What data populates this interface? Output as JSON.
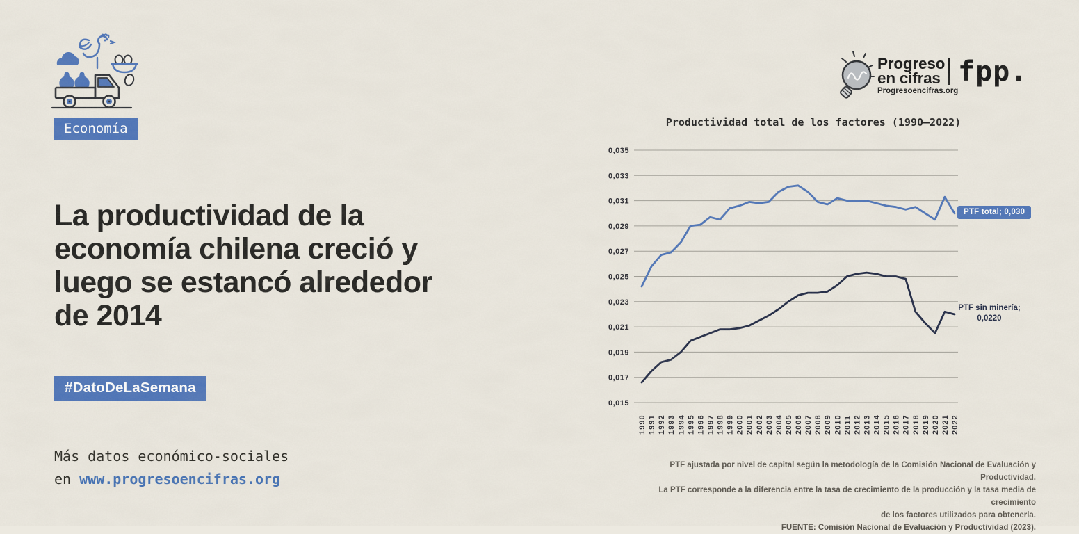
{
  "colors": {
    "paper": "#ece9e0",
    "accent_blue": "#4a72b8",
    "dark_navy": "#1b2441",
    "ink": "#1d1d1b",
    "link_blue": "#3d6db4",
    "gridline": "#a09e96",
    "footnote_gray": "#57534b"
  },
  "icons": {
    "header": "food-truck-with-farm-goods-icon",
    "brand": "lightbulb-icon"
  },
  "badges": {
    "category": "Economía",
    "hashtag": "#DatoDeLaSemana"
  },
  "hero": {
    "title": "La productividad de la\neconomía chilena creció y\nluego se estancó alrededor\nde 2014"
  },
  "footer_left": {
    "line1": "Más datos económico-sociales",
    "line2_prefix": "en ",
    "link": "www.progresoencifras.org"
  },
  "brand": {
    "line1": "Progreso",
    "line2": "en cifras",
    "site": "Progresoencifras.org",
    "partner": "fpp."
  },
  "chart_data": {
    "type": "line",
    "title": "Productividad total de los factores (1990–2022)",
    "xlabel": "",
    "ylabel": "",
    "grid": true,
    "legend_position": "end-of-line labels",
    "ylim": [
      0.015,
      0.035
    ],
    "ytick_step": 0.002,
    "yticks": [
      "0,015",
      "0,017",
      "0,019",
      "0,021",
      "0,023",
      "0,025",
      "0,027",
      "0,029",
      "0,031",
      "0,033",
      "0,035"
    ],
    "x": [
      1990,
      1991,
      1992,
      1993,
      1994,
      1995,
      1996,
      1997,
      1998,
      1999,
      2000,
      2001,
      2002,
      2003,
      2004,
      2005,
      2006,
      2007,
      2008,
      2009,
      2010,
      2011,
      2012,
      2013,
      2014,
      2015,
      2016,
      2017,
      2018,
      2019,
      2020,
      2021,
      2022
    ],
    "series": [
      {
        "name": "PTF total",
        "color": "#4a72b8",
        "values": [
          0.0242,
          0.0258,
          0.0267,
          0.0269,
          0.0277,
          0.029,
          0.0291,
          0.0297,
          0.0295,
          0.0304,
          0.0306,
          0.0309,
          0.0308,
          0.0309,
          0.0317,
          0.0321,
          0.0322,
          0.0317,
          0.0309,
          0.0307,
          0.0312,
          0.031,
          0.031,
          0.031,
          0.0308,
          0.0306,
          0.0305,
          0.0303,
          0.0305,
          0.03,
          0.0295,
          0.0313,
          0.03
        ]
      },
      {
        "name": "PTF sin minería",
        "color": "#1b2441",
        "values": [
          0.0166,
          0.0175,
          0.0182,
          0.0184,
          0.019,
          0.0199,
          0.0202,
          0.0205,
          0.0208,
          0.0208,
          0.0209,
          0.0211,
          0.0215,
          0.0219,
          0.0224,
          0.023,
          0.0235,
          0.0237,
          0.0237,
          0.0238,
          0.0243,
          0.025,
          0.0252,
          0.0253,
          0.0252,
          0.025,
          0.025,
          0.0248,
          0.0222,
          0.0213,
          0.0205,
          0.0222,
          0.022
        ]
      }
    ],
    "end_labels": {
      "total": "PTF total; 0,030",
      "sin_mineria": "PTF sin minería;\n0,0220"
    }
  },
  "footnote": "PTF ajustada por nivel de capital según la metodología de la Comisión Nacional de Evaluación y Productividad.\nLa PTF corresponde a la diferencia entre la tasa de crecimiento de la producción y la tasa media de crecimiento\nde los factores utilizados para obtenerla.\nFUENTE: Comisión Nacional de Evaluación y Productividad (2023)."
}
